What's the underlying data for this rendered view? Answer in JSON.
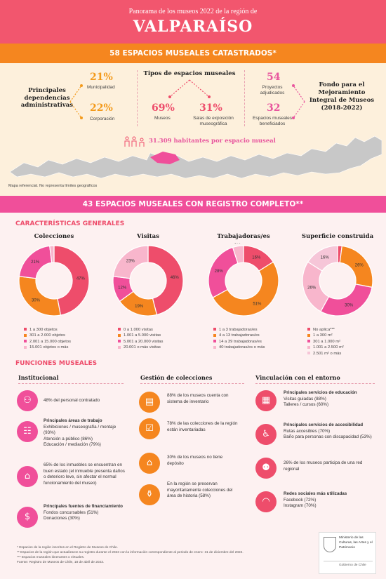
{
  "header": {
    "subtitle": "Panorama de los museos 2022 de la región de",
    "title": "VALPARAÍSO"
  },
  "band1": "58 ESPACIOS MUSEALES CATASTRADOS*",
  "deps": {
    "label": "Principales dependencias administrativas",
    "p1": "21%",
    "l1": "Municipalidad",
    "p2": "22%",
    "l2": "Corporación"
  },
  "tipos": {
    "label": "Tipos de espacios museales",
    "p1": "69%",
    "l1": "Museos",
    "p2": "31%",
    "l2": "Salas de exposición museográfica"
  },
  "fondo": {
    "n1": "54",
    "l1": "Proyectos adjudicados",
    "n2": "32",
    "l2": "Espacios museales beneficiados",
    "label": "Fondo para el Mejoramiento Integral de Museos (2018-2022)"
  },
  "habitantes": "31.309 habitantes por espacio museal",
  "map_note": "Mapa referencial. No representa límites geográficos",
  "band2": "43 ESPACIOS MUSEALES CON REGISTRO COMPLETO**",
  "car_title": "CARACTERÍSTICAS GENERALES",
  "charts": [
    {
      "title": "Colecciones",
      "colors": [
        "#ee4d6b",
        "#f5861f",
        "#f04f9a",
        "#f8b6cc"
      ],
      "values": [
        47,
        30,
        21,
        2
      ],
      "labels": [
        "47%",
        "30%",
        "21%",
        "2%"
      ],
      "legend": [
        "1 a 300 objetos",
        "301 a 2.000 objetos",
        "2.001 a 15.000 objetos",
        "15.001 objetos o más"
      ]
    },
    {
      "title": "Visitas",
      "colors": [
        "#ee4d6b",
        "#f5861f",
        "#f04f9a",
        "#f8b6cc"
      ],
      "values": [
        46,
        19,
        12,
        23
      ],
      "labels": [
        "46%",
        "19%",
        "12%",
        "23%"
      ],
      "legend": [
        "0 a 1.000 visitas",
        "1.001 a 5.000 visitas",
        "5.001 a 20.000 visitas",
        "20.001 o más visitas"
      ]
    },
    {
      "title": "Trabajadoras/es",
      "colors": [
        "#ee4d6b",
        "#f5861f",
        "#f04f9a",
        "#f8b6cc"
      ],
      "values": [
        16,
        51,
        28,
        5
      ],
      "labels": [
        "16%",
        "51%",
        "28%",
        "5%"
      ],
      "legend": [
        "1 a 3 trabajadoras/es",
        "4 a 13 trabajadoras/es",
        "14 a 39 trabajadoras/es",
        "40 trabajadoras/es o más"
      ]
    },
    {
      "title": "Superficie construida",
      "colors": [
        "#ee4d6b",
        "#f5861f",
        "#f04f9a",
        "#f8b6cc",
        "#f6c6d8"
      ],
      "values": [
        2,
        26,
        30,
        26,
        16
      ],
      "labels": [
        "2%",
        "26%",
        "30%",
        "26%",
        "16%"
      ],
      "legend": [
        "No aplica***",
        "1 a 300 m²",
        "301 a 1.000 m²",
        "1.001 a 2.500 m²",
        "2.501 m² o más"
      ]
    }
  ],
  "func_title": "FUNCIONES MUSEALES",
  "inst": {
    "title": "Institucional",
    "i1": "48% del personal contratado",
    "i2h": "Principales áreas de trabajo",
    "i2": "Exhibiciones / museografía / montaje (93%)\nAtención a público (86%)\nEducación / mediación (79%)",
    "i3": "65% de los inmuebles se encuentran en buen estado (el inmueble presenta daños o deterioro leve, sin afectar el normal funcionamiento del museo)",
    "i4h": "Principales fuentes de financiamiento",
    "i4": "Fondos concursables (51%)\nDonaciones (30%)"
  },
  "gest": {
    "title": "Gestión de colecciones",
    "g1": "88% de los museos cuenta con sistema de inventario",
    "g2": "78% de las colecciones de la región están inventariadas",
    "g3": "30% de los museos no tiene depósito",
    "g4": "En la región se preservan mayoritariamente colecciones del área de historia (58%)"
  },
  "vinc": {
    "title": "Vinculación con el entorno",
    "v1h": "Principales servicios de educación",
    "v1": "Visitas guiadas (88%)\nTalleres / cursos (60%)",
    "v2h": "Principales servicios de accesibilidad",
    "v2": "Rutas accesibles (70%)\nBaño para personas con discapacidad (53%)",
    "v3": "26% de los museos participa de una red regional",
    "v4h": "Redes sociales más utilizadas",
    "v4": "Facebook (72%)\nInstagram (70%)"
  },
  "footnotes": [
    "* Espacios de la región inscritos en el Registro de Museos de Chile.",
    "** Espacios de la región que actualizaron su registro durante el 2023 con la información correspondiente al periodo de enero- 31 de diciembre del 2022.",
    "*** Espacios museales itinerantes o virtuales.",
    "Fuente: Registro de Museos de Chile, 18 de abril de 2023."
  ],
  "logo": {
    "l1": "Ministerio de las Culturas, las Artes y el Patrimonio",
    "l2": "Gobierno de Chile"
  }
}
